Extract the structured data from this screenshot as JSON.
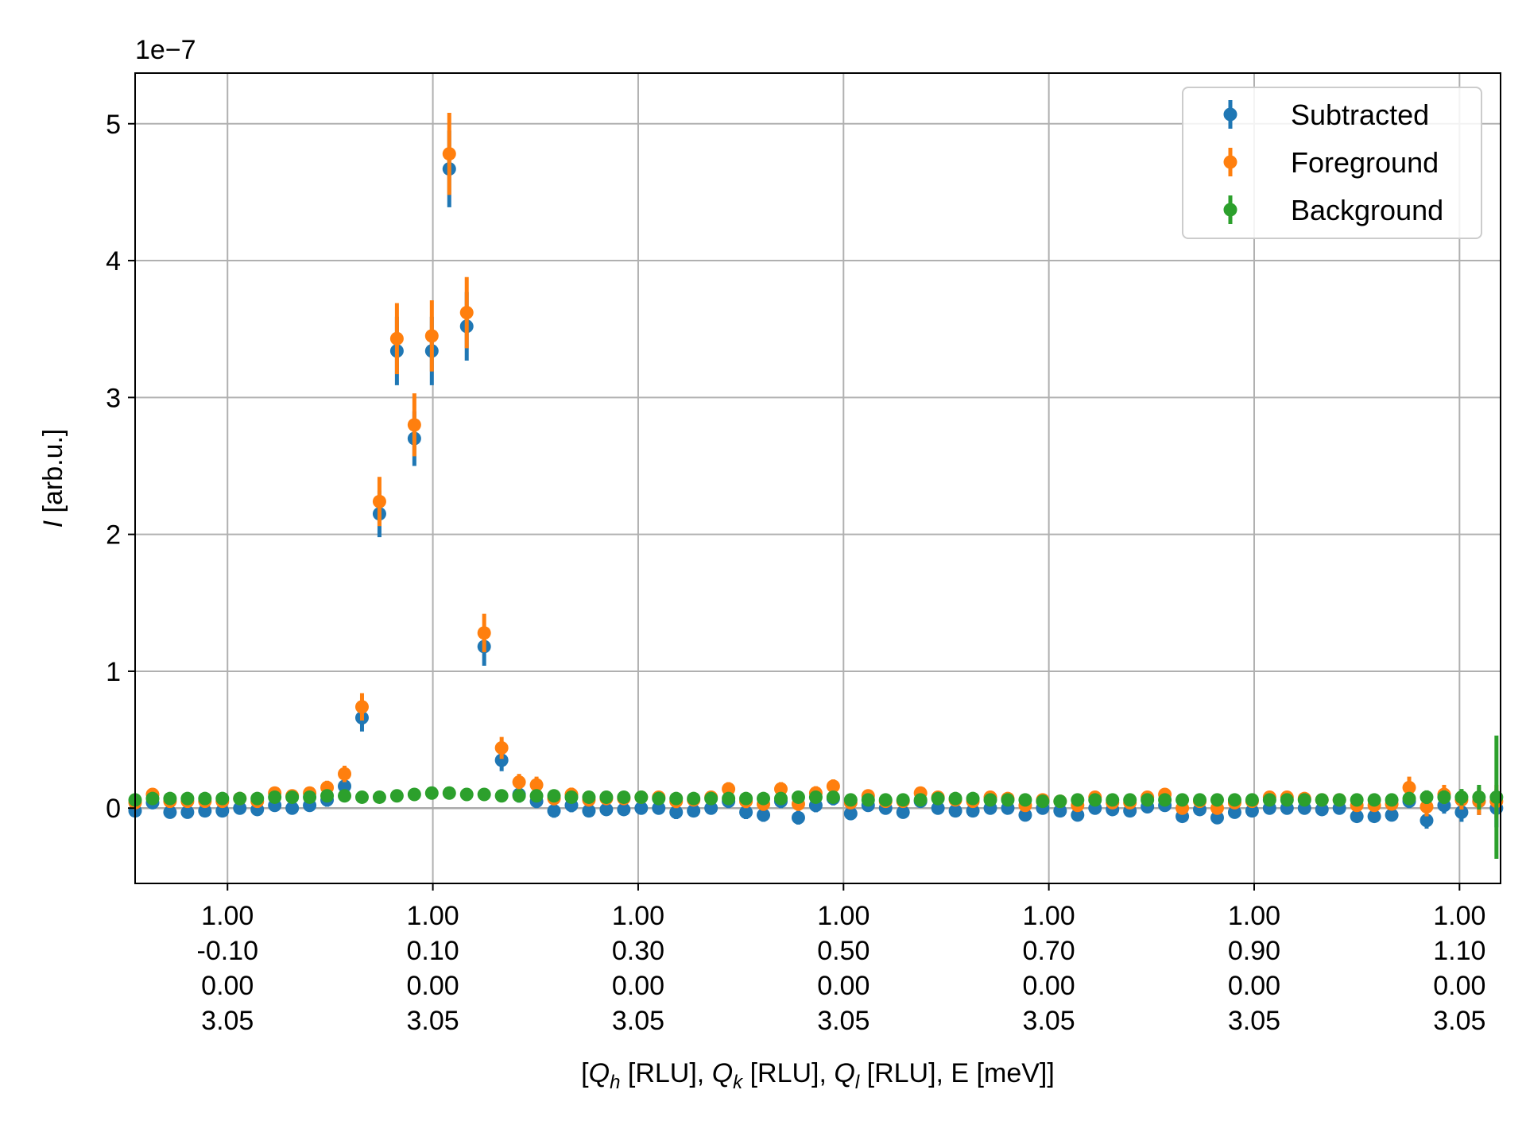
{
  "chart_data": {
    "type": "scatter",
    "error_bars": true,
    "grid": true,
    "legend_position": "top-right",
    "offset_label": "1e−7",
    "ylabel_italic": "I",
    "ylabel_rest": " [arb.u.]",
    "xlabel_parts": [
      {
        "t": "[",
        "style": "normal"
      },
      {
        "t": "Q",
        "style": "italic"
      },
      {
        "t": "h",
        "style": "sub-italic"
      },
      {
        "t": " [RLU], ",
        "style": "normal"
      },
      {
        "t": "Q",
        "style": "italic"
      },
      {
        "t": "k",
        "style": "sub-italic"
      },
      {
        "t": " [RLU], ",
        "style": "normal"
      },
      {
        "t": "Q",
        "style": "italic"
      },
      {
        "t": "l",
        "style": "sub-italic"
      },
      {
        "t": " [RLU], E [meV]]",
        "style": "normal"
      }
    ],
    "ylim": [
      -0.55,
      5.37
    ],
    "xlim": [
      -0.19,
      1.14
    ],
    "yticks": [
      0,
      1,
      2,
      3,
      4,
      5
    ],
    "xticks": [
      {
        "qk": -0.1,
        "lines": [
          "1.00",
          "-0.10",
          "0.00",
          "3.05"
        ]
      },
      {
        "qk": 0.1,
        "lines": [
          "1.00",
          "0.10",
          "0.00",
          "3.05"
        ]
      },
      {
        "qk": 0.3,
        "lines": [
          "1.00",
          "0.30",
          "0.00",
          "3.05"
        ]
      },
      {
        "qk": 0.5,
        "lines": [
          "1.00",
          "0.50",
          "0.00",
          "3.05"
        ]
      },
      {
        "qk": 0.7,
        "lines": [
          "1.00",
          "0.70",
          "0.00",
          "3.05"
        ]
      },
      {
        "qk": 0.9,
        "lines": [
          "1.00",
          "0.90",
          "0.00",
          "3.05"
        ]
      },
      {
        "qk": 1.1,
        "lines": [
          "1.00",
          "1.10",
          "0.00",
          "3.05"
        ]
      }
    ],
    "x": [
      -0.19,
      -0.173,
      -0.156,
      -0.139,
      -0.122,
      -0.105,
      -0.088,
      -0.071,
      -0.054,
      -0.037,
      -0.02,
      -0.003,
      0.014,
      0.031,
      0.048,
      0.065,
      0.082,
      0.099,
      0.116,
      0.133,
      0.15,
      0.167,
      0.184,
      0.201,
      0.218,
      0.235,
      0.252,
      0.269,
      0.286,
      0.303,
      0.32,
      0.337,
      0.354,
      0.371,
      0.388,
      0.405,
      0.422,
      0.439,
      0.456,
      0.473,
      0.49,
      0.507,
      0.524,
      0.541,
      0.558,
      0.575,
      0.592,
      0.609,
      0.626,
      0.643,
      0.66,
      0.677,
      0.694,
      0.711,
      0.728,
      0.745,
      0.762,
      0.779,
      0.796,
      0.813,
      0.83,
      0.847,
      0.864,
      0.881,
      0.898,
      0.915,
      0.932,
      0.949,
      0.966,
      0.983,
      1.0,
      1.017,
      1.034,
      1.051,
      1.068,
      1.085,
      1.102,
      1.119,
      1.136
    ],
    "series": [
      {
        "name": "Subtracted",
        "color": "#1f77b4",
        "values": [
          -0.02,
          0.04,
          -0.03,
          -0.03,
          -0.02,
          -0.02,
          0.0,
          -0.01,
          0.02,
          0.0,
          0.02,
          0.06,
          0.16,
          0.66,
          2.15,
          3.34,
          2.7,
          3.34,
          4.67,
          3.52,
          1.18,
          0.35,
          0.1,
          0.05,
          -0.02,
          0.02,
          -0.02,
          -0.01,
          -0.01,
          0.0,
          0.0,
          -0.03,
          -0.02,
          0.0,
          0.05,
          -0.03,
          -0.05,
          0.05,
          -0.07,
          0.02,
          0.07,
          -0.04,
          0.02,
          0.0,
          -0.03,
          0.05,
          0.0,
          -0.02,
          -0.02,
          0.0,
          0.0,
          -0.05,
          0.0,
          -0.02,
          -0.05,
          0.0,
          -0.01,
          -0.02,
          0.01,
          0.02,
          -0.06,
          -0.01,
          -0.07,
          -0.03,
          -0.02,
          0.0,
          0.0,
          0.0,
          -0.01,
          0.0,
          -0.06,
          -0.06,
          -0.05,
          0.05,
          -0.09,
          0.02,
          -0.03,
          0.05,
          0.0
        ],
        "errors": [
          0.04,
          0.04,
          0.04,
          0.04,
          0.04,
          0.04,
          0.04,
          0.04,
          0.04,
          0.04,
          0.04,
          0.05,
          0.06,
          0.1,
          0.17,
          0.25,
          0.2,
          0.25,
          0.28,
          0.25,
          0.14,
          0.08,
          0.06,
          0.05,
          0.05,
          0.05,
          0.04,
          0.04,
          0.04,
          0.04,
          0.04,
          0.05,
          0.04,
          0.04,
          0.05,
          0.05,
          0.05,
          0.05,
          0.05,
          0.05,
          0.05,
          0.04,
          0.04,
          0.04,
          0.04,
          0.04,
          0.04,
          0.04,
          0.04,
          0.04,
          0.04,
          0.04,
          0.04,
          0.04,
          0.04,
          0.04,
          0.04,
          0.04,
          0.04,
          0.04,
          0.04,
          0.04,
          0.04,
          0.04,
          0.04,
          0.04,
          0.04,
          0.04,
          0.04,
          0.04,
          0.04,
          0.04,
          0.04,
          0.05,
          0.06,
          0.06,
          0.07,
          0.1,
          0.14
        ]
      },
      {
        "name": "Foreground",
        "color": "#ff7f0e",
        "values": [
          0.04,
          0.1,
          0.05,
          0.05,
          0.05,
          0.05,
          0.07,
          0.05,
          0.11,
          0.09,
          0.11,
          0.15,
          0.25,
          0.74,
          2.24,
          3.43,
          2.8,
          3.45,
          4.78,
          3.62,
          1.28,
          0.44,
          0.19,
          0.17,
          0.07,
          0.1,
          0.06,
          0.07,
          0.07,
          0.08,
          0.08,
          0.05,
          0.06,
          0.08,
          0.14,
          0.05,
          0.03,
          0.14,
          0.03,
          0.11,
          0.16,
          0.04,
          0.09,
          0.05,
          0.05,
          0.11,
          0.08,
          0.06,
          0.05,
          0.08,
          0.07,
          0.02,
          0.06,
          0.05,
          0.02,
          0.08,
          0.04,
          0.04,
          0.08,
          0.1,
          0.0,
          0.05,
          0.0,
          0.04,
          0.05,
          0.08,
          0.08,
          0.07,
          0.06,
          0.06,
          0.02,
          0.02,
          0.03,
          0.15,
          0.01,
          0.1,
          0.06,
          0.05,
          0.05
        ],
        "errors": [
          0.04,
          0.04,
          0.04,
          0.04,
          0.04,
          0.04,
          0.04,
          0.04,
          0.04,
          0.04,
          0.04,
          0.05,
          0.06,
          0.1,
          0.18,
          0.26,
          0.23,
          0.26,
          0.3,
          0.26,
          0.14,
          0.08,
          0.06,
          0.06,
          0.05,
          0.05,
          0.04,
          0.04,
          0.04,
          0.04,
          0.04,
          0.05,
          0.04,
          0.04,
          0.05,
          0.05,
          0.05,
          0.05,
          0.05,
          0.05,
          0.05,
          0.04,
          0.04,
          0.04,
          0.04,
          0.04,
          0.04,
          0.04,
          0.04,
          0.04,
          0.04,
          0.04,
          0.04,
          0.04,
          0.04,
          0.04,
          0.04,
          0.04,
          0.04,
          0.04,
          0.04,
          0.04,
          0.04,
          0.04,
          0.04,
          0.04,
          0.04,
          0.04,
          0.04,
          0.04,
          0.04,
          0.04,
          0.04,
          0.08,
          0.07,
          0.07,
          0.07,
          0.1,
          0.12
        ]
      },
      {
        "name": "Background",
        "color": "#2ca02c",
        "values": [
          0.06,
          0.07,
          0.07,
          0.07,
          0.07,
          0.07,
          0.07,
          0.07,
          0.08,
          0.08,
          0.08,
          0.09,
          0.09,
          0.08,
          0.08,
          0.09,
          0.1,
          0.11,
          0.11,
          0.1,
          0.1,
          0.09,
          0.09,
          0.09,
          0.09,
          0.08,
          0.08,
          0.08,
          0.08,
          0.08,
          0.07,
          0.07,
          0.07,
          0.07,
          0.07,
          0.07,
          0.07,
          0.07,
          0.08,
          0.08,
          0.08,
          0.06,
          0.06,
          0.06,
          0.06,
          0.06,
          0.07,
          0.07,
          0.07,
          0.06,
          0.06,
          0.06,
          0.05,
          0.05,
          0.06,
          0.06,
          0.06,
          0.06,
          0.06,
          0.06,
          0.06,
          0.06,
          0.06,
          0.06,
          0.06,
          0.06,
          0.06,
          0.06,
          0.06,
          0.06,
          0.06,
          0.06,
          0.06,
          0.07,
          0.08,
          0.08,
          0.08,
          0.08,
          0.08
        ],
        "errors": [
          0.03,
          0.03,
          0.03,
          0.03,
          0.03,
          0.03,
          0.03,
          0.03,
          0.03,
          0.03,
          0.03,
          0.03,
          0.03,
          0.03,
          0.03,
          0.03,
          0.03,
          0.03,
          0.04,
          0.03,
          0.03,
          0.03,
          0.03,
          0.03,
          0.03,
          0.03,
          0.03,
          0.03,
          0.03,
          0.03,
          0.03,
          0.03,
          0.03,
          0.03,
          0.03,
          0.03,
          0.03,
          0.03,
          0.03,
          0.03,
          0.03,
          0.03,
          0.03,
          0.03,
          0.03,
          0.03,
          0.03,
          0.03,
          0.03,
          0.03,
          0.03,
          0.03,
          0.03,
          0.03,
          0.03,
          0.03,
          0.03,
          0.03,
          0.03,
          0.03,
          0.03,
          0.03,
          0.03,
          0.03,
          0.03,
          0.03,
          0.03,
          0.03,
          0.03,
          0.03,
          0.03,
          0.03,
          0.03,
          0.04,
          0.05,
          0.05,
          0.06,
          0.09,
          0.45
        ]
      }
    ]
  }
}
